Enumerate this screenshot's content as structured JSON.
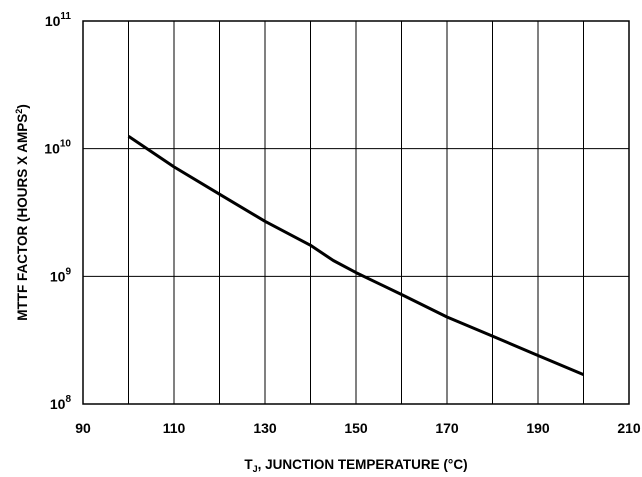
{
  "chart_data": {
    "type": "line",
    "title": "",
    "xlabel": "T",
    "xlabel_subscript": "J",
    "xlabel_rest": ", JUNCTION TEMPERATURE (°C)",
    "ylabel": "MTTF FACTOR (HOURS X AMPS",
    "ylabel_superscript": "2",
    "ylabel_end": ")",
    "xlim": [
      90,
      210
    ],
    "ylim": [
      100000000,
      100000000000
    ],
    "yscale": "log",
    "grid": true,
    "x_ticks": [
      90,
      110,
      130,
      150,
      170,
      190,
      210
    ],
    "x_grid": [
      100,
      110,
      120,
      130,
      140,
      150,
      160,
      170,
      180,
      190,
      200
    ],
    "y_ticks": [
      {
        "value": 100000000,
        "base": "10",
        "exp": "8"
      },
      {
        "value": 1000000000,
        "base": "10",
        "exp": "9"
      },
      {
        "value": 10000000000,
        "base": "10",
        "exp": "10"
      },
      {
        "value": 100000000000,
        "base": "10",
        "exp": "11"
      }
    ],
    "series": [
      {
        "color": "#000000",
        "x": [
          100,
          110,
          120,
          130,
          140,
          145,
          150,
          160,
          170,
          180,
          190,
          200
        ],
        "y": [
          12500000000,
          7200000000,
          4400000000,
          2700000000,
          1750000000,
          1330000000,
          1070000000,
          720000000,
          480000000,
          340000000,
          240000000,
          170000000
        ]
      }
    ]
  }
}
